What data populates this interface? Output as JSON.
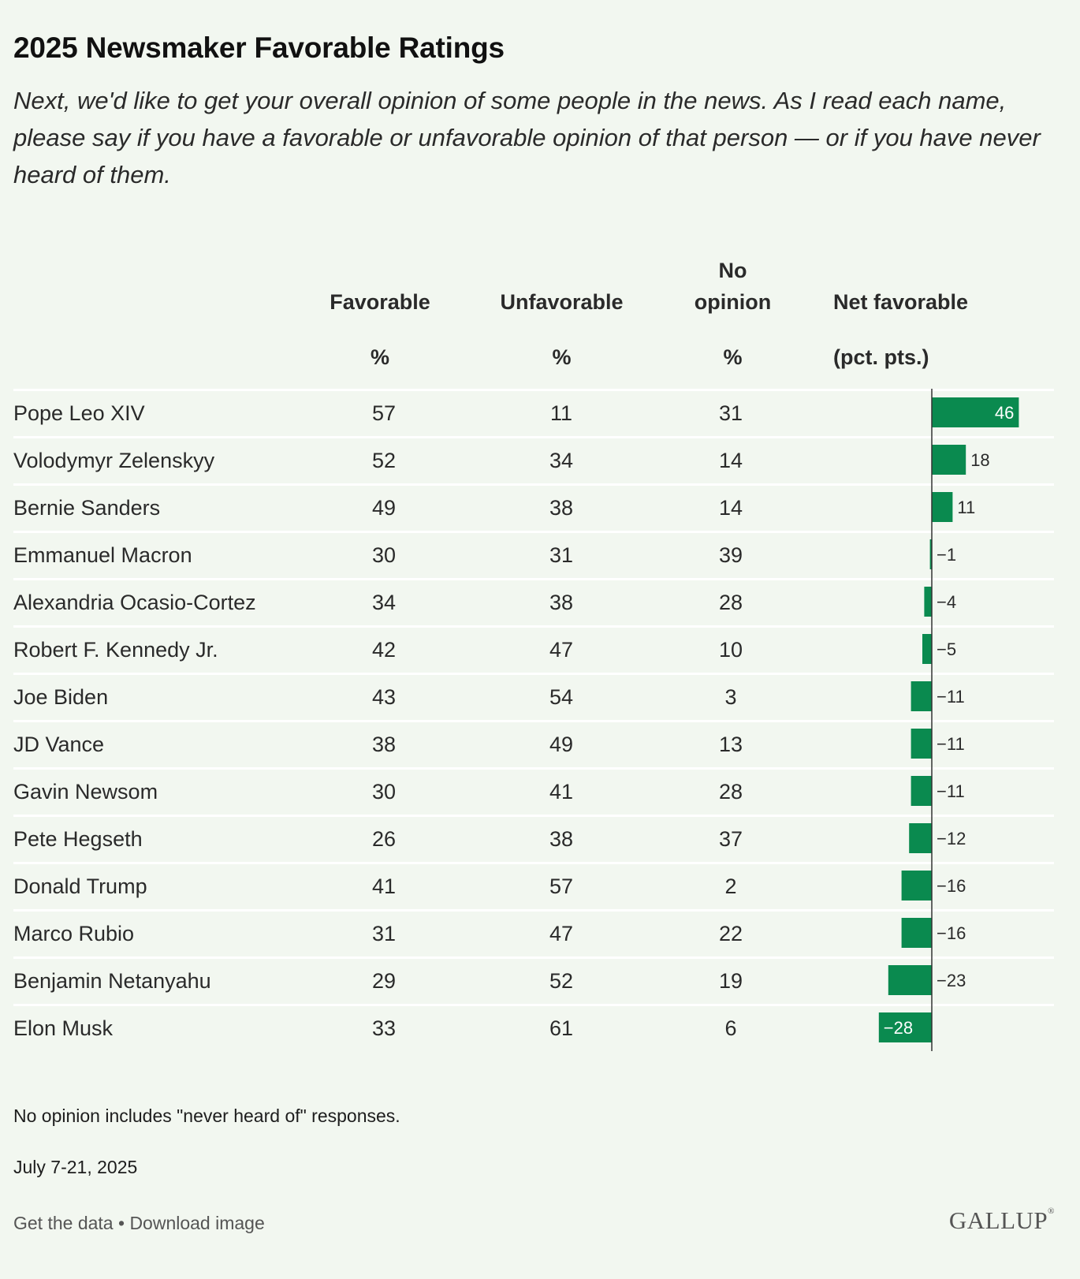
{
  "title": "2025 Newsmaker Favorable Ratings",
  "subtitle": "Next, we'd like to get your overall opinion of some people in the news. As I read each name, please say if you have a favorable or unfavorable opinion of that person — or if you have never heard of them.",
  "headers": {
    "favorable": "Favorable",
    "unfavorable": "Unfavorable",
    "no_opinion_line1": "No",
    "no_opinion_line2": "opinion",
    "net_favorable": "Net favorable",
    "pct": "%",
    "pct_pts": "(pct. pts.)"
  },
  "chart_data": {
    "type": "table",
    "title": "2025 Newsmaker Favorable Ratings",
    "columns": [
      "Favorable %",
      "Unfavorable %",
      "No opinion %",
      "Net favorable (pct. pts.)"
    ],
    "rows": [
      {
        "name": "Pope Leo XIV",
        "favorable": 57,
        "unfavorable": 11,
        "no_opinion": 31,
        "net": 46,
        "net_label": "46"
      },
      {
        "name": "Volodymyr Zelenskyy",
        "favorable": 52,
        "unfavorable": 34,
        "no_opinion": 14,
        "net": 18,
        "net_label": "18"
      },
      {
        "name": "Bernie Sanders",
        "favorable": 49,
        "unfavorable": 38,
        "no_opinion": 14,
        "net": 11,
        "net_label": "11"
      },
      {
        "name": "Emmanuel Macron",
        "favorable": 30,
        "unfavorable": 31,
        "no_opinion": 39,
        "net": -1,
        "net_label": "−1"
      },
      {
        "name": "Alexandria Ocasio-Cortez",
        "favorable": 34,
        "unfavorable": 38,
        "no_opinion": 28,
        "net": -4,
        "net_label": "−4"
      },
      {
        "name": "Robert F. Kennedy Jr.",
        "favorable": 42,
        "unfavorable": 47,
        "no_opinion": 10,
        "net": -5,
        "net_label": "−5"
      },
      {
        "name": "Joe Biden",
        "favorable": 43,
        "unfavorable": 54,
        "no_opinion": 3,
        "net": -11,
        "net_label": "−11"
      },
      {
        "name": "JD Vance",
        "favorable": 38,
        "unfavorable": 49,
        "no_opinion": 13,
        "net": -11,
        "net_label": "−11"
      },
      {
        "name": "Gavin Newsom",
        "favorable": 30,
        "unfavorable": 41,
        "no_opinion": 28,
        "net": -11,
        "net_label": "−11"
      },
      {
        "name": "Pete Hegseth",
        "favorable": 26,
        "unfavorable": 38,
        "no_opinion": 37,
        "net": -12,
        "net_label": "−12"
      },
      {
        "name": "Donald Trump",
        "favorable": 41,
        "unfavorable": 57,
        "no_opinion": 2,
        "net": -16,
        "net_label": "−16"
      },
      {
        "name": "Marco Rubio",
        "favorable": 31,
        "unfavorable": 47,
        "no_opinion": 22,
        "net": -16,
        "net_label": "−16"
      },
      {
        "name": "Benjamin Netanyahu",
        "favorable": 29,
        "unfavorable": 52,
        "no_opinion": 19,
        "net": -23,
        "net_label": "−23"
      },
      {
        "name": "Elon Musk",
        "favorable": 33,
        "unfavorable": 61,
        "no_opinion": 6,
        "net": -28,
        "net_label": "−28"
      }
    ],
    "net_range": [
      -28,
      46
    ],
    "bar_color": "#0a8a4f"
  },
  "footnote": "No opinion includes \"never heard of\" responses.",
  "date": "July 7-21, 2025",
  "links": {
    "get_data": "Get the data",
    "separator": " • ",
    "download": "Download image"
  },
  "logo": "GALLUP"
}
